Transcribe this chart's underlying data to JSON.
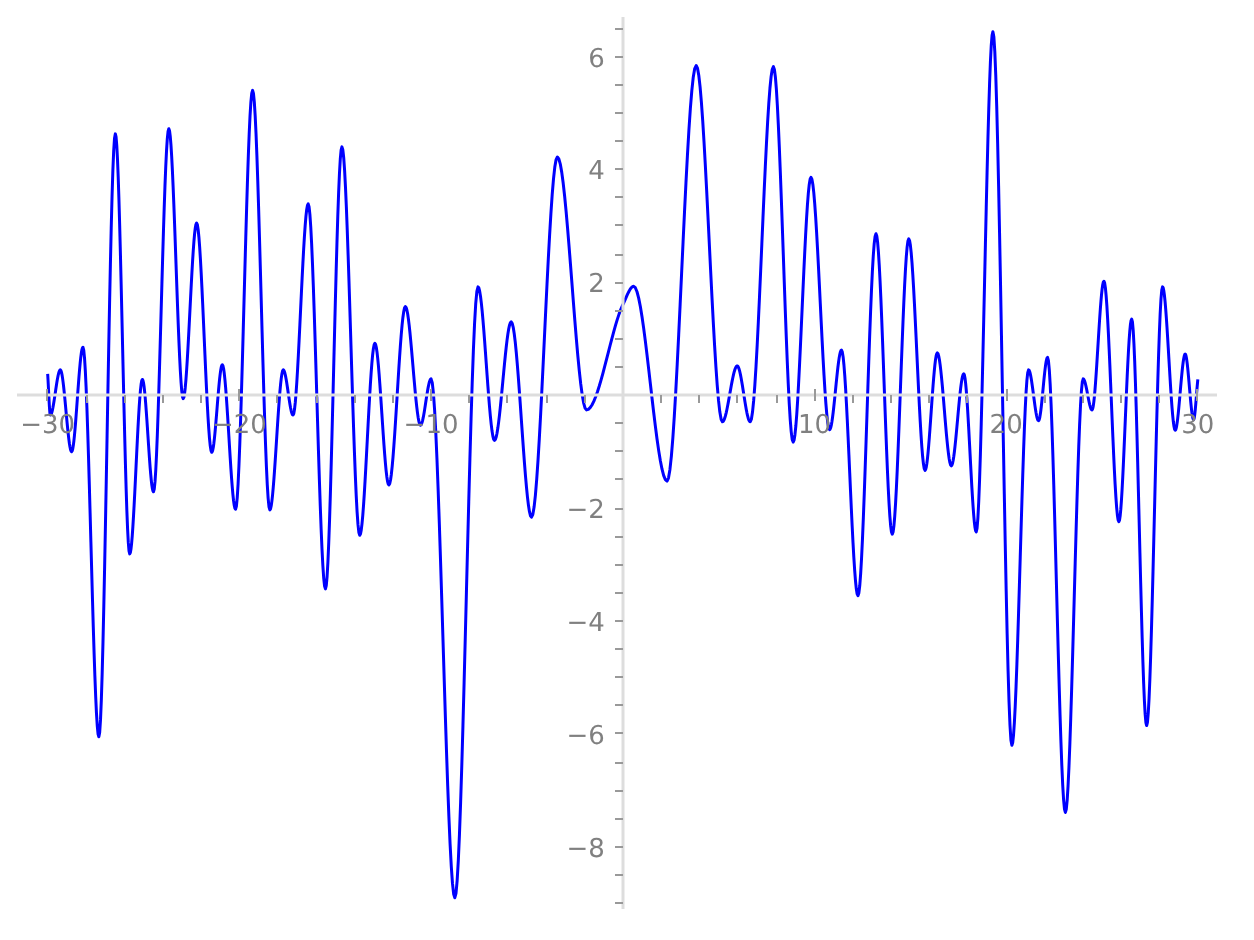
{
  "chart_data": {
    "type": "line",
    "grid": false,
    "marker": "none",
    "line_style": "solid",
    "xlim": [
      -31.6,
      31.0
    ],
    "ylim": [
      -9.1,
      6.7
    ],
    "xticks": [
      -30,
      {
        "value": -28,
        "label": null
      },
      {
        "value": -26,
        "label": null
      },
      {
        "value": -24,
        "label": null
      },
      {
        "value": -22,
        "label": null
      },
      -20,
      {
        "value": -18,
        "label": null
      },
      {
        "value": -16,
        "label": null
      },
      {
        "value": -14,
        "label": null
      },
      {
        "value": -12,
        "label": null
      },
      -10,
      {
        "value": -8,
        "label": null
      },
      {
        "value": -6,
        "label": null
      },
      {
        "value": -4,
        "label": null
      },
      {
        "value": -2,
        "label": null
      },
      {
        "value": 2,
        "label": null
      },
      {
        "value": 4,
        "label": null
      },
      {
        "value": 6,
        "label": null
      },
      {
        "value": 8,
        "label": null
      },
      10,
      {
        "value": 12,
        "label": null
      },
      {
        "value": 14,
        "label": null
      },
      {
        "value": 16,
        "label": null
      },
      {
        "value": 18,
        "label": null
      },
      20,
      {
        "value": 22,
        "label": null
      },
      {
        "value": 24,
        "label": null
      },
      {
        "value": 26,
        "label": null
      },
      {
        "value": 28,
        "label": null
      },
      30
    ],
    "yticks": [
      {
        "value": -9,
        "label": null
      },
      {
        "value": -8.5,
        "label": null
      },
      -8,
      {
        "value": -7.5,
        "label": null
      },
      {
        "value": -7,
        "label": null
      },
      {
        "value": -6.5,
        "label": null
      },
      -6,
      {
        "value": -5.5,
        "label": null
      },
      {
        "value": -5,
        "label": null
      },
      {
        "value": -4.5,
        "label": null
      },
      -4,
      {
        "value": -3.5,
        "label": null
      },
      {
        "value": -3,
        "label": null
      },
      {
        "value": -2.5,
        "label": null
      },
      -2,
      {
        "value": -1.5,
        "label": null
      },
      {
        "value": -1,
        "label": null
      },
      {
        "value": -0.5,
        "label": null
      },
      {
        "value": 0.5,
        "label": null
      },
      {
        "value": 1,
        "label": null
      },
      {
        "value": 1.5,
        "label": null
      },
      2,
      {
        "value": 2.5,
        "label": null
      },
      {
        "value": 3,
        "label": null
      },
      {
        "value": 3.5,
        "label": null
      },
      4,
      {
        "value": 4.5,
        "label": null
      },
      {
        "value": 5,
        "label": null
      },
      {
        "value": 5.5,
        "label": null
      },
      6,
      {
        "value": 6.5,
        "label": null
      }
    ],
    "series": [
      {
        "color": "#0000ff",
        "x": [
          -30,
          -29.86,
          -29.34,
          -28.75,
          -28.16,
          -27.33,
          -26.47,
          -25.72,
          -25.06,
          -24.48,
          -23.68,
          -22.93,
          -22.23,
          -21.44,
          -20.89,
          -20.2,
          -19.31,
          -18.41,
          -17.71,
          -17.2,
          -16.41,
          -15.51,
          -14.65,
          -13.72,
          -12.93,
          -12.2,
          -11.34,
          -10.55,
          -10.0,
          -8.76,
          -7.55,
          -6.69,
          -5.82,
          -4.76,
          -3.41,
          -1.89,
          0,
          0.57,
          2.31,
          3.83,
          5.2,
          5.97,
          6.65,
          7.86,
          8.89,
          9.82,
          10.79,
          11.41,
          12.27,
          13.21,
          14.06,
          14.92,
          15.77,
          16.41,
          17.14,
          17.79,
          18.44,
          19.31,
          20.3,
          21.17,
          21.69,
          22.16,
          23.09,
          24.02,
          24.48,
          25.1,
          25.88,
          26.55,
          27.33,
          28.16,
          28.82,
          29.34,
          29.78,
          30.0
        ],
        "values": [
          0.38,
          -0.35,
          0.45,
          -1.0,
          0.85,
          -6.05,
          4.63,
          -2.81,
          0.28,
          -1.71,
          4.72,
          -0.06,
          3.05,
          -1.01,
          0.54,
          -2.02,
          5.4,
          -2.03,
          0.45,
          -0.35,
          3.39,
          -3.43,
          4.4,
          -2.48,
          0.92,
          -1.59,
          1.57,
          -0.53,
          0.29,
          -8.9,
          1.92,
          -0.8,
          1.3,
          -2.16,
          4.22,
          -0.26,
          1.6,
          1.93,
          -1.52,
          5.84,
          -0.47,
          0.52,
          -0.47,
          5.82,
          -0.83,
          3.86,
          -0.61,
          0.8,
          -3.55,
          2.86,
          -2.46,
          2.77,
          -1.33,
          0.75,
          -1.25,
          0.38,
          -2.42,
          6.44,
          -6.2,
          0.45,
          -0.45,
          0.67,
          -7.39,
          0.29,
          -0.26,
          2.02,
          -2.24,
          1.35,
          -5.85,
          1.92,
          -0.62,
          0.73,
          -0.43,
          0.28
        ]
      }
    ]
  }
}
